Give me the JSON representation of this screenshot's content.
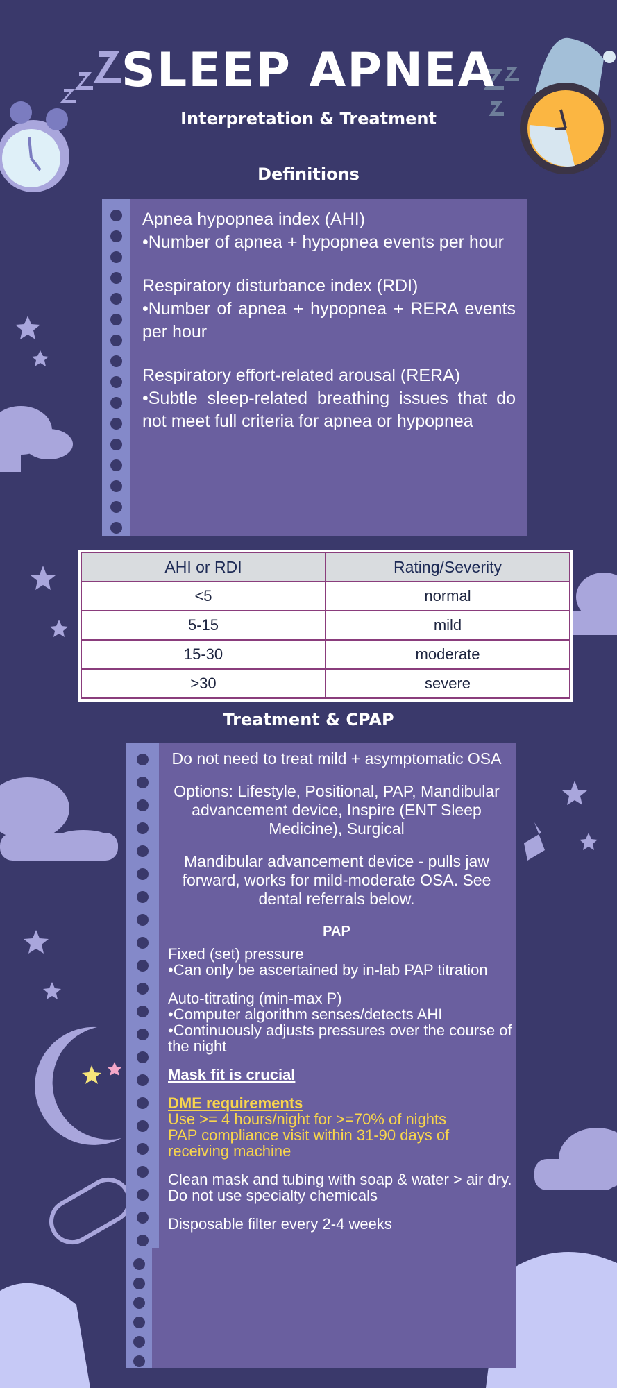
{
  "header": {
    "title": "SLEEP APNEA",
    "subtitle": "Interpretation & Treatment"
  },
  "definitions": {
    "heading": "Definitions",
    "items": [
      {
        "term": "Apnea hypopnea index (AHI)",
        "desc": "•Number of apnea + hypopnea events per hour"
      },
      {
        "term": "Respiratory disturbance index (RDI)",
        "desc": "•Number of apnea + hypopnea + RERA events per hour"
      },
      {
        "term": "Respiratory effort-related arousal (RERA)",
        "desc": "•Subtle sleep-related breathing issues that do not meet full criteria for apnea or hypopnea"
      }
    ]
  },
  "severity_table": {
    "headers": [
      "AHI or RDI",
      "Rating/Severity"
    ],
    "rows": [
      [
        "<5",
        "normal"
      ],
      [
        "5-15",
        "mild"
      ],
      [
        "15-30",
        "moderate"
      ],
      [
        ">30",
        "severe"
      ]
    ]
  },
  "treatment": {
    "heading": "Treatment & CPAP",
    "p1": "Do not need to treat mild + asymptomatic OSA",
    "p2": "Options: Lifestyle, Positional, PAP, Mandibular advancement device, Inspire (ENT Sleep Medicine), Surgical",
    "p3": "Mandibular advancement device - pulls jaw forward, works for mild-moderate OSA. See dental referrals below.",
    "pap_heading": "PAP",
    "fixed_title": "Fixed (set) pressure",
    "fixed_desc": "•Can only be ascertained by in-lab PAP titration",
    "auto_title": "Auto-titrating (min-max P)",
    "auto_desc1": "•Computer algorithm senses/detects AHI",
    "auto_desc2": "•Continuously adjusts pressures over the course of the night",
    "mask_fit": "Mask fit is crucial",
    "dme_title": "DME requirements",
    "dme_1": "Use >= 4 hours/night for >=70% of nights",
    "dme_2": "PAP compliance visit within 31-90 days of receiving machine",
    "clean": "Clean mask and tubing with soap & water > air dry. Do not use specialty chemicals",
    "filter": "Disposable filter every 2-4 weeks"
  },
  "colors": {
    "background": "#3a396b",
    "card": "#6a5f9f",
    "strip": "#8489c9",
    "highlight": "#f8d54c",
    "table_border": "#8a3d7c"
  }
}
